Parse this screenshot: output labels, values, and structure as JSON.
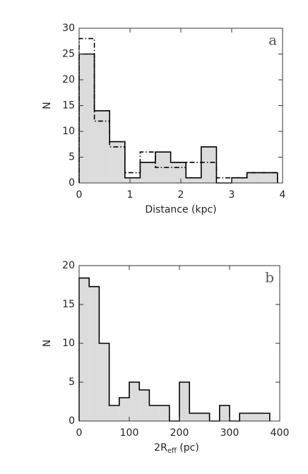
{
  "chart_data": [
    {
      "type": "histogram",
      "corner_label": "a",
      "x_label": "Distance (kpc)",
      "y_label": "N",
      "bins": [
        0,
        0.3,
        0.6,
        0.9,
        1.2,
        1.5,
        1.8,
        2.1,
        2.4,
        2.7,
        3.0,
        3.3,
        3.6,
        3.9
      ],
      "series": [
        {
          "color": "#000000",
          "fill": "#dcdcdc",
          "dash": "none",
          "values": [
            25,
            14,
            8,
            1,
            4,
            6,
            4,
            1,
            7,
            0,
            1,
            2,
            2
          ]
        },
        {
          "color": "#000000",
          "fill": "none",
          "dash": "7,3,1.5,3",
          "values": [
            28,
            12,
            7,
            2,
            6,
            3,
            3,
            4,
            4,
            1,
            1,
            2,
            2
          ]
        }
      ],
      "xlim": [
        0,
        4
      ],
      "xticks": [
        0,
        1,
        2,
        3,
        4
      ],
      "ylim": [
        0,
        30
      ],
      "yticks": [
        0,
        5,
        10,
        15,
        20,
        25,
        30
      ]
    },
    {
      "type": "histogram",
      "corner_label": "b",
      "x_label": {
        "main": "2R",
        "sub": "eff",
        "tail": " (pc)"
      },
      "y_label": "N",
      "bins": [
        0,
        20,
        40,
        60,
        80,
        100,
        120,
        140,
        160,
        180,
        200,
        220,
        240,
        260,
        280,
        300,
        320,
        340,
        360,
        380
      ],
      "series": [
        {
          "color": "#000000",
          "fill": "#dcdcdc",
          "dash": "none",
          "values": [
            18.4,
            17.3,
            10,
            2,
            3,
            5,
            4,
            2,
            2,
            0,
            5,
            1,
            1,
            0,
            2,
            0,
            1,
            1,
            1
          ]
        }
      ],
      "xlim": [
        0,
        400
      ],
      "xticks": [
        0,
        100,
        200,
        300,
        400
      ],
      "ylim": [
        0,
        20
      ],
      "yticks": [
        0,
        5,
        10,
        15,
        20
      ]
    }
  ]
}
